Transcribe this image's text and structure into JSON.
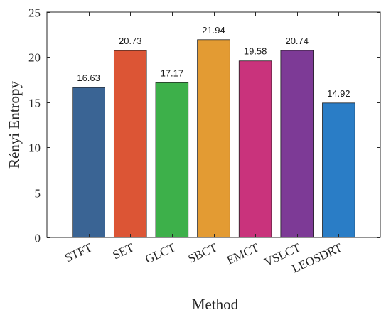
{
  "chart_data": {
    "type": "bar",
    "title": "",
    "xlabel": "Method",
    "ylabel": "Rényi Entropy",
    "categories": [
      "STFT",
      "SET",
      "GLCT",
      "SBCT",
      "EMCT",
      "VSLCT",
      "LEOSDRT"
    ],
    "values": [
      16.63,
      20.73,
      17.17,
      21.94,
      19.58,
      20.74,
      14.92
    ],
    "data_labels": [
      "16.63",
      "20.73",
      "17.17",
      "21.94",
      "19.58",
      "20.74",
      "14.92"
    ],
    "colors": [
      "#3a6494",
      "#dc5535",
      "#3db04a",
      "#e39b33",
      "#c9337c",
      "#7d3a96",
      "#2a7dc6"
    ],
    "ylim": [
      0,
      25
    ],
    "yticks": [
      0,
      5,
      10,
      15,
      20,
      25
    ],
    "ytick_labels": [
      "0",
      "5",
      "10",
      "15",
      "20",
      "25"
    ],
    "grid": false,
    "legend": false
  }
}
